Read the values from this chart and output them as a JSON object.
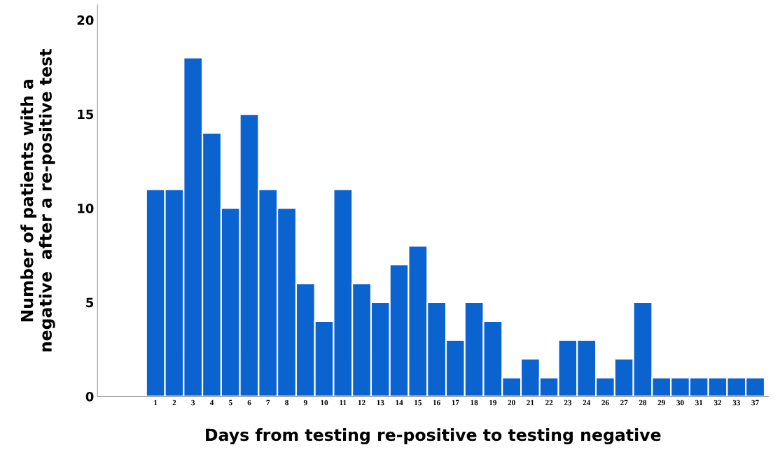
{
  "chart_data": {
    "type": "bar",
    "xlabel": "Days from testing re-positive to testing negative",
    "ylabel": "Number of patients with a\nnegative  after a re-positive test",
    "categories": [
      "1",
      "2",
      "3",
      "4",
      "5",
      "6",
      "7",
      "8",
      "9",
      "10",
      "11",
      "12",
      "13",
      "14",
      "15",
      "16",
      "17",
      "18",
      "19",
      "20",
      "21",
      "22",
      "23",
      "24",
      "26",
      "27",
      "28",
      "29",
      "30",
      "31",
      "32",
      "33",
      "37"
    ],
    "values": [
      11,
      11,
      18,
      14,
      10,
      15,
      11,
      10,
      6,
      4,
      11,
      6,
      5,
      7,
      8,
      5,
      3,
      5,
      4,
      1,
      2,
      1,
      3,
      3,
      1,
      2,
      5,
      1,
      1,
      1,
      1,
      1,
      1
    ],
    "color": "#0b63d0",
    "ylim": [
      0,
      20.8
    ],
    "yticks": [
      0,
      5,
      10,
      15,
      20
    ],
    "grid": false
  }
}
